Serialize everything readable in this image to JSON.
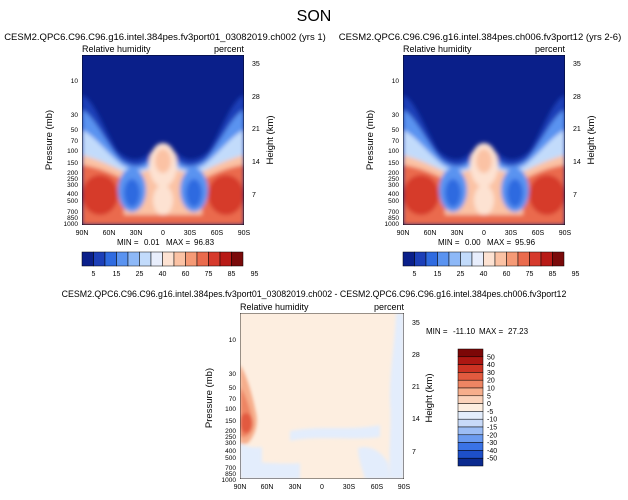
{
  "figure": {
    "season": "SON"
  },
  "colors": {
    "abs": [
      "#0a1f8a",
      "#1c3fb8",
      "#2f6be0",
      "#5a93f0",
      "#8db8f7",
      "#c2dbfb",
      "#e8eefc",
      "#fde2d2",
      "#fbc2a4",
      "#f59a76",
      "#ea6b4d",
      "#d63a2c",
      "#b81a16",
      "#7a0a0a"
    ],
    "diff": [
      "#0b2a8f",
      "#1d4fc9",
      "#3a73e6",
      "#6b9bf0",
      "#9cbdf5",
      "#c8daf9",
      "#e3edfc",
      "#fdeee0",
      "#fbd3bb",
      "#f6ae8c",
      "#ee8563",
      "#e25a3f",
      "#cd3323",
      "#ad1712",
      "#7c0707"
    ]
  },
  "chart_data": [
    {
      "type": "heatmap",
      "title": "CESM2.QPC6.C96.C96.g16.intel.384pes.fv3port01_03082019.ch002 (yrs 1)",
      "left_label": "Relative humidity",
      "right_label": "percent",
      "ylabel": "Pressure (mb)",
      "y2label": "Height (km)",
      "x_ticks": [
        "90N",
        "60N",
        "30N",
        "0",
        "30S",
        "60S",
        "90S"
      ],
      "y_ticks": [
        "10",
        "30",
        "50",
        "70",
        "100",
        "150",
        "200",
        "250",
        "300",
        "400",
        "500",
        "700",
        "850",
        "1000"
      ],
      "y2_ticks": [
        "35",
        "28",
        "21",
        "14",
        "7"
      ],
      "min_label": "MIN =",
      "min_value": "0.01",
      "max_label": "MAX =",
      "max_value": "96.83",
      "colorbar": {
        "orientation": "horizontal",
        "labels": [
          "5",
          "15",
          "25",
          "40",
          "60",
          "75",
          "85",
          "95"
        ]
      }
    },
    {
      "type": "heatmap",
      "title": "CESM2.QPC6.C96.C96.g16.intel.384pes.ch006.fv3port12 (yrs 2-6)",
      "left_label": "Relative humidity",
      "right_label": "percent",
      "ylabel": "Pressure (mb)",
      "y2label": "Height (km)",
      "x_ticks": [
        "90N",
        "60N",
        "30N",
        "0",
        "30S",
        "60S",
        "90S"
      ],
      "y_ticks": [
        "10",
        "30",
        "50",
        "70",
        "100",
        "150",
        "200",
        "250",
        "300",
        "400",
        "500",
        "700",
        "850",
        "1000"
      ],
      "y2_ticks": [
        "35",
        "28",
        "21",
        "14",
        "7"
      ],
      "min_label": "MIN =",
      "min_value": "0.00",
      "max_label": "MAX =",
      "max_value": "95.96",
      "colorbar": {
        "orientation": "horizontal",
        "labels": [
          "5",
          "15",
          "25",
          "40",
          "60",
          "75",
          "85",
          "95"
        ]
      }
    },
    {
      "type": "heatmap",
      "title": "CESM2.QPC6.C96.C96.g16.intel.384pes.fv3port01_03082019.ch002 - CESM2.QPC6.C96.C96.g16.intel.384pes.ch006.fv3port12",
      "left_label": "Relative humidity",
      "right_label": "percent",
      "ylabel": "Pressure (mb)",
      "y2label": "Height (km)",
      "x_ticks": [
        "90N",
        "60N",
        "30N",
        "0",
        "30S",
        "60S",
        "90S"
      ],
      "y_ticks": [
        "10",
        "30",
        "50",
        "70",
        "100",
        "150",
        "200",
        "250",
        "300",
        "400",
        "500",
        "700",
        "850",
        "1000"
      ],
      "y2_ticks": [
        "35",
        "28",
        "21",
        "14",
        "7"
      ],
      "min_label": "MIN =",
      "min_value": "-11.10",
      "max_label": "MAX =",
      "max_value": "27.23",
      "colorbar": {
        "orientation": "vertical",
        "labels": [
          "50",
          "40",
          "30",
          "20",
          "10",
          "5",
          "0",
          "-5",
          "-10",
          "-15",
          "-20",
          "-30",
          "-40",
          "-50"
        ]
      }
    }
  ]
}
